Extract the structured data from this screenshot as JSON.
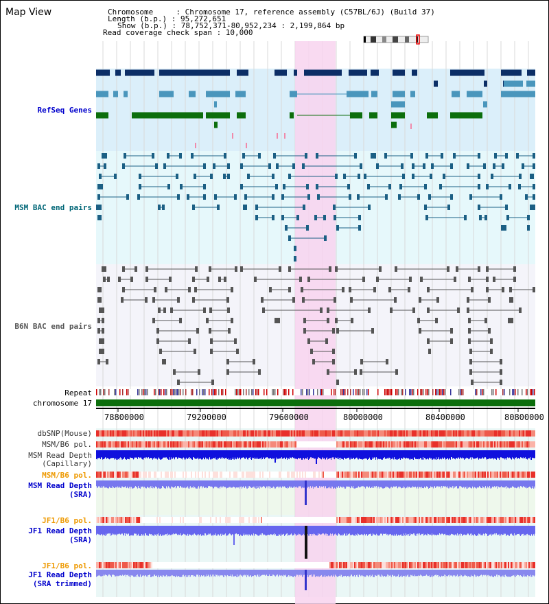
{
  "app": {
    "title": "Map View"
  },
  "info": {
    "chromosome_label": "Chromosome     : Chromosome 17, reference assembly (C57BL/6J) (Build 37)",
    "length_label": "Length (b.p.) : 95,272,651",
    "show_label": "Show (b.p.) : 78,752,371-80,952,234 : 2,199,864 bp",
    "coverage_label": "Read coverage check span : 10,000"
  },
  "tracks": {
    "refseq": "RefSeq Genes",
    "msm_bac": "MSM BAC end pairs",
    "b6n_bac": "B6N BAC end pairs",
    "repeat": "Repeat",
    "chromosome": "chromosome 17",
    "dbsnp": "dbSNP(Mouse)",
    "msm_b6_pol_1": "MSM/B6 pol.",
    "msm_read_depth_cap": "MSM Read Depth\n(Capillary)",
    "msm_b6_pol_2": "MSM/B6 pol.",
    "msm_read_depth_sra": "MSM Read Depth\n(SRA)",
    "jf1_b6_pol_1": "JF1/B6 pol.",
    "jf1_read_depth_sra": "JF1 Read Depth\n(SRA)",
    "jf1_b6_pol_2": "JF1/B6 pol.",
    "jf1_read_depth_trim": "JF1 Read Depth\n(SRA trimmed)"
  },
  "axis": {
    "ticks": [
      "78800000",
      "79200000",
      "79600000",
      "80000000",
      "80400000",
      "80800000"
    ]
  },
  "colors": {
    "highlight": "#f8d4ee",
    "refseq_bg": "#dbeffa",
    "msm_bg": "#e6f8fb",
    "b6n_bg": "#f4f4fa",
    "gene_dark": "#0c2e66",
    "gene_mid": "#4a96bc",
    "gene_green": "#0c6e0c",
    "msm_line": "#1b5f84",
    "b6n_line": "#555555",
    "track_blue": "#0000cc",
    "track_orange": "#ee9900",
    "track_msm": "#006677"
  }
}
